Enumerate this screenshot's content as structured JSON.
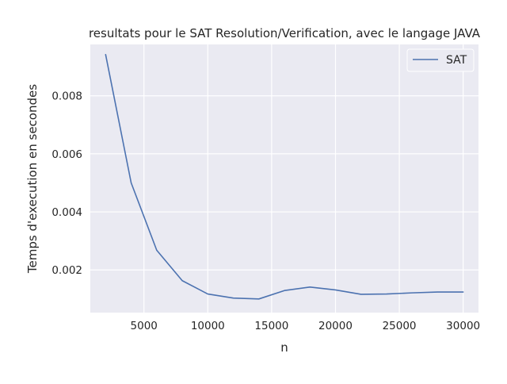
{
  "chart_data": {
    "type": "line",
    "title": "resultats pour le SAT Resolution/Verification, avec le langage JAVA",
    "xlabel": "n",
    "ylabel": "Temps d'execution en secondes",
    "xlim": [
      800,
      31200
    ],
    "ylim": [
      0.00053,
      0.00977
    ],
    "xticks": [
      5000,
      10000,
      15000,
      20000,
      25000,
      30000
    ],
    "xtick_labels": [
      "5000",
      "10000",
      "15000",
      "20000",
      "25000",
      "30000"
    ],
    "yticks": [
      0.002,
      0.004,
      0.006,
      0.008
    ],
    "ytick_labels": [
      "0.002",
      "0.004",
      "0.006",
      "0.008"
    ],
    "grid": true,
    "legend_position": "top-right",
    "series": [
      {
        "name": "SAT",
        "color": "#4c72b0",
        "x": [
          2000,
          4000,
          6000,
          8000,
          10000,
          12000,
          14000,
          16000,
          18000,
          20000,
          22000,
          24000,
          26000,
          28000,
          30000
        ],
        "y": [
          0.00942,
          0.005,
          0.00268,
          0.00163,
          0.00117,
          0.00103,
          0.001,
          0.00129,
          0.00141,
          0.00131,
          0.00116,
          0.00117,
          0.00121,
          0.00124,
          0.00124
        ]
      }
    ]
  },
  "colors": {
    "plot_background": "#eaeaf2",
    "grid": "#ffffff",
    "text": "#262626"
  }
}
